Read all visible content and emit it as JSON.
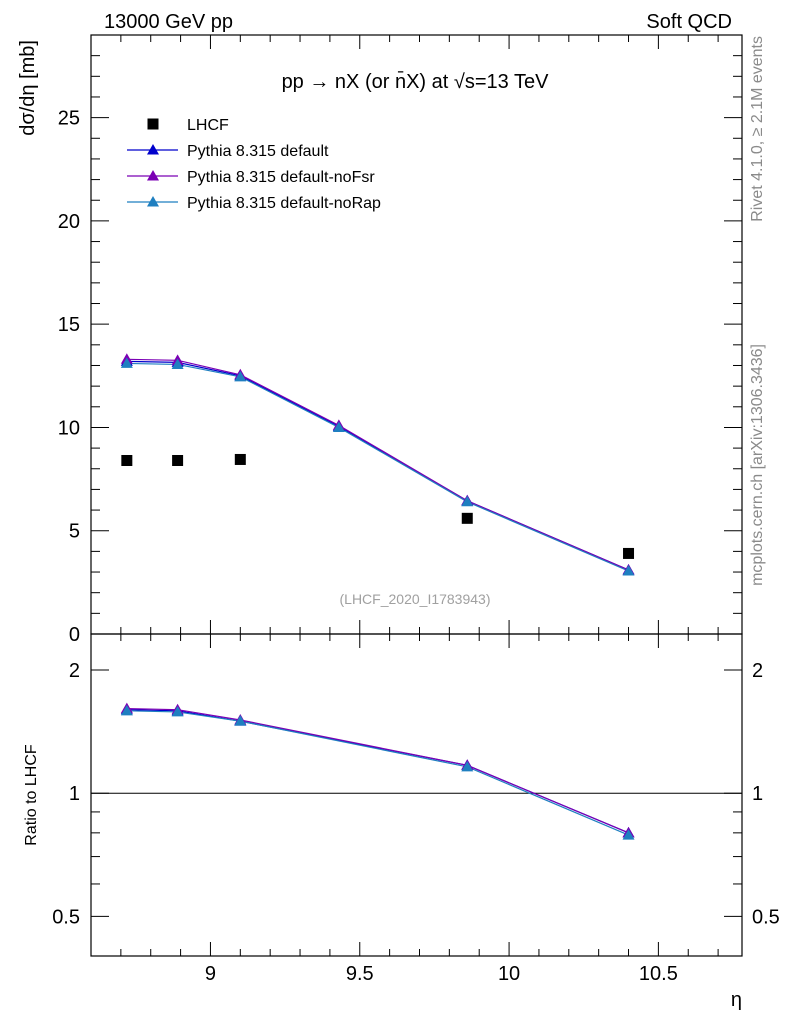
{
  "header": {
    "left": "13000 GeV pp",
    "right": "Soft QCD"
  },
  "side_text": {
    "rivet": "Rivet 4.1.0, ≥ 2.1M events",
    "mcplots": "mcplots.cern.ch [arXiv:1306.3436]"
  },
  "chart_data": [
    {
      "type": "line",
      "panel": "main",
      "title": "pp → nX (or n̄X) at √s=13 TeV",
      "watermark": "(LHCF_2020_I1783943)",
      "xlabel": "η",
      "ylabel": "dσ/dη [mb]",
      "xlim": [
        8.6,
        10.78
      ],
      "ylim": [
        0,
        29
      ],
      "yticks": [
        0,
        5,
        10,
        15,
        20,
        25
      ],
      "ytick_labels": [
        "0",
        "5",
        "10",
        "15",
        "20",
        "25"
      ],
      "legend_position": "top-left",
      "series": [
        {
          "name": "LHCF",
          "style": "markers",
          "marker": "square",
          "color": "#000000",
          "x": [
            8.72,
            8.89,
            9.1,
            9.86,
            10.4
          ],
          "y": [
            8.4,
            8.4,
            8.45,
            5.6,
            3.9
          ]
        },
        {
          "name": "Pythia 8.315 default",
          "style": "line",
          "marker": "triangle",
          "color": "#0000cc",
          "x": [
            8.72,
            8.89,
            9.1,
            9.43,
            9.86,
            10.4
          ],
          "y": [
            13.2,
            13.15,
            12.5,
            10.05,
            6.45,
            3.1
          ]
        },
        {
          "name": "Pythia 8.315 default-noFsr",
          "style": "line",
          "marker": "triangle",
          "color": "#7b00b4",
          "x": [
            8.72,
            8.89,
            9.1,
            9.43,
            9.86,
            10.4
          ],
          "y": [
            13.3,
            13.25,
            12.55,
            10.1,
            6.45,
            3.1
          ]
        },
        {
          "name": "Pythia 8.315 default-noRap",
          "style": "line",
          "marker": "triangle",
          "color": "#1f7fc0",
          "x": [
            8.72,
            8.89,
            9.1,
            9.43,
            9.86,
            10.4
          ],
          "y": [
            13.1,
            13.05,
            12.45,
            10.0,
            6.4,
            3.05
          ]
        }
      ]
    },
    {
      "type": "line",
      "panel": "ratio",
      "xlabel": "η",
      "ylabel": "Ratio to LHCF",
      "xlim": [
        8.6,
        10.78
      ],
      "ylim": [
        0.4,
        2.45
      ],
      "yscale": "log",
      "yticks": [
        0.5,
        1,
        2
      ],
      "ytick_labels": [
        "0.5",
        "1",
        "2"
      ],
      "xticks": [
        9,
        9.5,
        10,
        10.5
      ],
      "xtick_labels": [
        "9",
        "9.5",
        "10",
        "10.5"
      ],
      "reference_line": 1,
      "series": [
        {
          "name": "Pythia 8.315 default",
          "color": "#0000cc",
          "x": [
            8.72,
            8.89,
            9.1,
            9.86,
            10.4
          ],
          "y": [
            1.6,
            1.59,
            1.5,
            1.17,
            0.8
          ]
        },
        {
          "name": "Pythia 8.315 default-noFsr",
          "color": "#7b00b4",
          "x": [
            8.72,
            8.89,
            9.1,
            9.86,
            10.4
          ],
          "y": [
            1.61,
            1.6,
            1.51,
            1.17,
            0.8
          ]
        },
        {
          "name": "Pythia 8.315 default-noRap",
          "color": "#1f7fc0",
          "x": [
            8.72,
            8.89,
            9.1,
            9.86,
            10.4
          ],
          "y": [
            1.59,
            1.58,
            1.5,
            1.16,
            0.79
          ]
        }
      ]
    }
  ]
}
